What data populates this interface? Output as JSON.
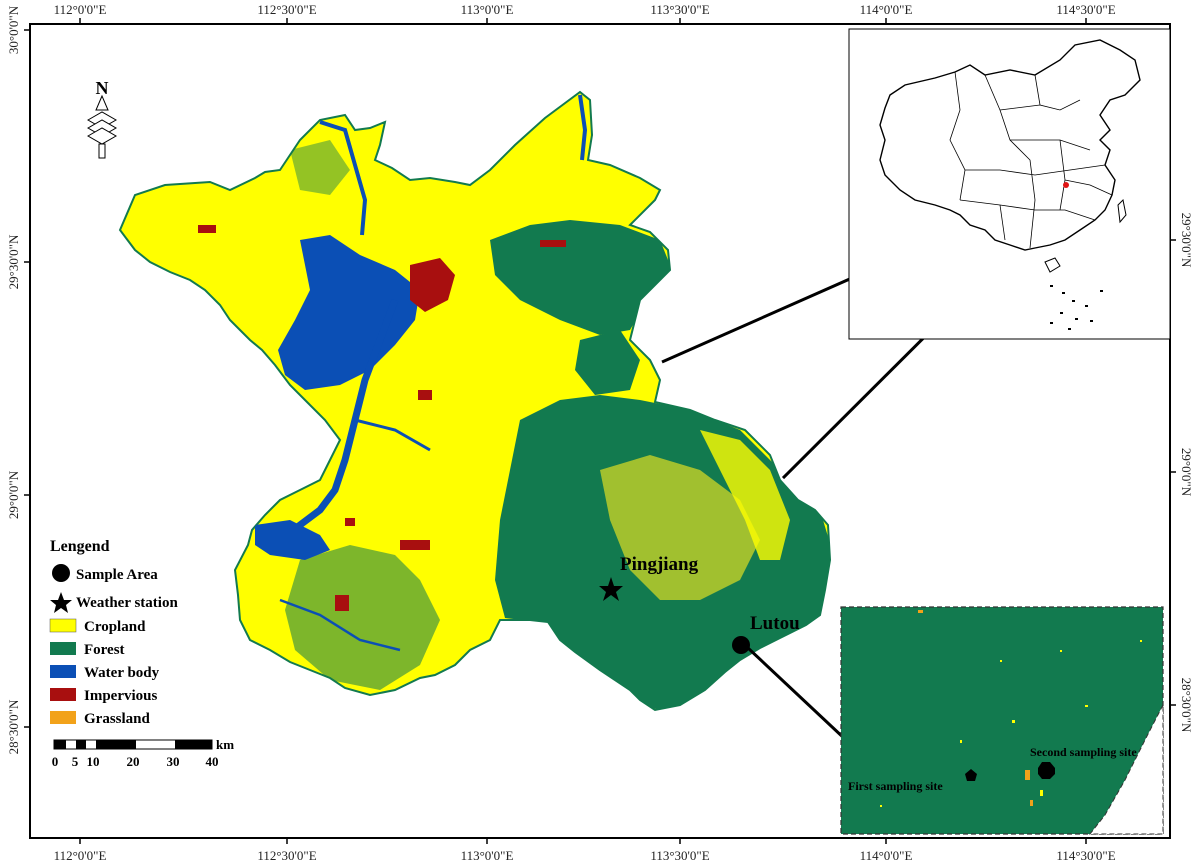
{
  "map": {
    "top_ticks": [
      "112°0'0\"E",
      "112°30'0\"E",
      "113°0'0\"E",
      "113°30'0\"E",
      "114°0'0\"E",
      "114°30'0\"E"
    ],
    "bottom_ticks": [
      "112°0'0\"E",
      "112°30'0\"E",
      "113°0'0\"E",
      "113°30'0\"E",
      "114°0'0\"E",
      "114°30'0\"E"
    ],
    "left_ticks": [
      "30°0'0\"N",
      "29°30'0\"N",
      "29°0'0\"N",
      "28°30'0\"N"
    ],
    "right_ticks": [
      "29°30'0\"N",
      "29°0'0\"N",
      "28°30'0\"N"
    ],
    "north_label": "N",
    "places": {
      "pingjiang": "Pingjiang",
      "lutou": "Lutou"
    },
    "inset_sites": {
      "first": "First sampling site",
      "second": "Second sampling site"
    },
    "scale": {
      "labels": [
        "0",
        "5",
        "10",
        "20",
        "30",
        "40"
      ],
      "unit": "km"
    },
    "colors": {
      "cropland": "#ffff00",
      "forest": "#127a4f",
      "water": "#0b4fb5",
      "impervious": "#a80f0f",
      "grassland": "#f2a21a"
    }
  },
  "legend": {
    "title": "Lengend",
    "items": [
      {
        "label": "Sample Area",
        "symbol": "circle"
      },
      {
        "label": "Weather station",
        "symbol": "star"
      },
      {
        "label": "Cropland",
        "symbol": "swatch",
        "color": "#ffff00"
      },
      {
        "label": "Forest",
        "symbol": "swatch",
        "color": "#127a4f"
      },
      {
        "label": "Water body",
        "symbol": "swatch",
        "color": "#0b4fb5"
      },
      {
        "label": "Impervious",
        "symbol": "swatch",
        "color": "#a80f0f"
      },
      {
        "label": "Grassland",
        "symbol": "swatch",
        "color": "#f2a21a"
      }
    ]
  }
}
